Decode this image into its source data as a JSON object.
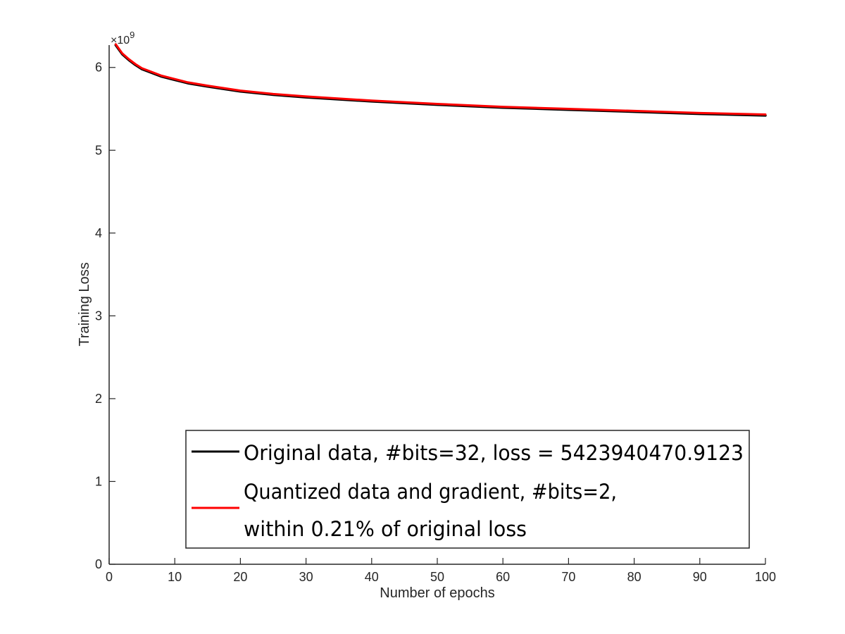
{
  "chart_data": {
    "type": "line",
    "xlabel": "Number of epochs",
    "ylabel": "Training Loss",
    "xlim": [
      0,
      100
    ],
    "ylim": [
      0,
      6.27
    ],
    "y_exponent_label": "×10",
    "y_exponent_power": "9",
    "xticks": [
      0,
      10,
      20,
      30,
      40,
      50,
      60,
      70,
      80,
      90,
      100
    ],
    "yticks": [
      0,
      1,
      2,
      3,
      4,
      5,
      6
    ],
    "grid": false,
    "legend_position": "bottom-center",
    "legend": {
      "line1": "Original data,     #bits=32, loss = 5423940470.9123",
      "line2": "Quantized data and gradient,  #bits=2,",
      "line3": " within 0.21% of original loss"
    },
    "colors": {
      "original": "#000000",
      "quantized": "#ff0000"
    },
    "series": [
      {
        "key": "original",
        "x": [
          1,
          2,
          3,
          4,
          5,
          6,
          8,
          10,
          12,
          15,
          20,
          25,
          30,
          40,
          50,
          60,
          70,
          80,
          90,
          100
        ],
        "values": [
          6.27,
          6.16,
          6.09,
          6.03,
          5.98,
          5.95,
          5.89,
          5.85,
          5.81,
          5.77,
          5.71,
          5.67,
          5.64,
          5.59,
          5.55,
          5.515,
          5.49,
          5.465,
          5.44,
          5.42
        ]
      },
      {
        "key": "quantized",
        "x": [
          1,
          2,
          3,
          4,
          5,
          6,
          8,
          10,
          12,
          15,
          20,
          25,
          30,
          40,
          50,
          60,
          70,
          80,
          90,
          100
        ],
        "values": [
          6.28,
          6.17,
          6.1,
          6.04,
          5.99,
          5.96,
          5.9,
          5.86,
          5.82,
          5.78,
          5.72,
          5.68,
          5.65,
          5.6,
          5.56,
          5.525,
          5.5,
          5.475,
          5.45,
          5.432
        ]
      }
    ]
  }
}
